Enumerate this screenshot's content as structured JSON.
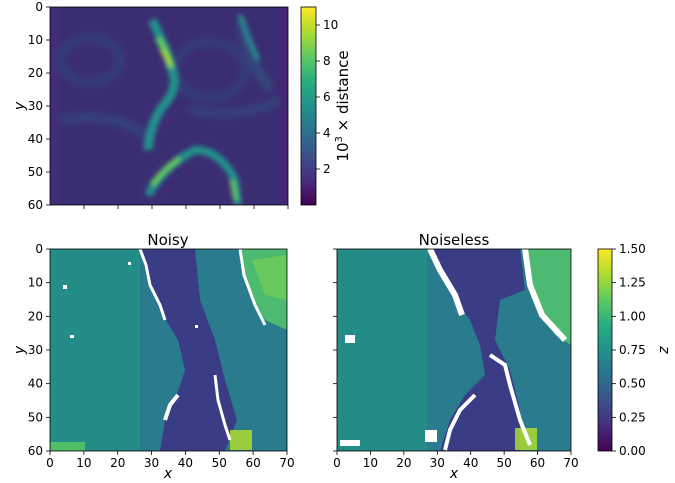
{
  "figure": {
    "panels": [
      {
        "id": "top",
        "title": "",
        "xlabel": "",
        "ylabel": "y",
        "xticks": [],
        "yticks": [
          0,
          10,
          20,
          30,
          40,
          50,
          60
        ],
        "xlim": [
          0,
          70
        ],
        "ylim": [
          60,
          0
        ],
        "colormap": "viridis",
        "field": "distance",
        "value_range": [
          0,
          11
        ],
        "show_xtick_labels": false
      },
      {
        "id": "noisy",
        "title": "Noisy",
        "xlabel": "x",
        "ylabel": "y",
        "xticks": [
          0,
          10,
          20,
          30,
          40,
          50,
          60,
          70
        ],
        "yticks": [
          0,
          10,
          20,
          30,
          40,
          50,
          60
        ],
        "xlim": [
          0,
          70
        ],
        "ylim": [
          60,
          0
        ],
        "colormap": "viridis",
        "field": "z",
        "value_range": [
          0,
          1.5
        ],
        "show_xtick_labels": true
      },
      {
        "id": "noiseless",
        "title": "Noiseless",
        "xlabel": "x",
        "ylabel": "",
        "xticks": [
          0,
          10,
          20,
          30,
          40,
          50,
          60,
          70
        ],
        "yticks": [
          0,
          10,
          20,
          30,
          40,
          50,
          60
        ],
        "xlim": [
          0,
          70
        ],
        "ylim": [
          60,
          0
        ],
        "colormap": "viridis",
        "field": "z",
        "value_range": [
          0,
          1.5
        ],
        "show_xtick_labels": true
      }
    ],
    "colorbars": [
      {
        "id": "top-colorbar",
        "label_base": "10",
        "label_exp": "3",
        "label_rest": " × distance",
        "range": [
          0,
          11
        ],
        "ticks": [
          "2",
          "4",
          "6",
          "8",
          "10"
        ],
        "tick_values": [
          2,
          4,
          6,
          8,
          10
        ]
      },
      {
        "id": "bottom-colorbar",
        "label": "z",
        "range": [
          0,
          1.5
        ],
        "ticks": [
          "0.00",
          "0.25",
          "0.50",
          "0.75",
          "1.00",
          "1.25",
          "1.50"
        ],
        "tick_values": [
          0,
          0.25,
          0.5,
          0.75,
          1.0,
          1.25,
          1.5
        ]
      }
    ]
  },
  "chart_data": [
    {
      "type": "heatmap",
      "title": "",
      "xlabel": "",
      "ylabel": "y",
      "xlim": [
        0,
        70
      ],
      "ylim": [
        60,
        0
      ],
      "colorbar_label": "10^3 × distance",
      "value_range": [
        0,
        11
      ],
      "description_values": {
        "background": 1.5,
        "ridge_peak": 10.5
      }
    },
    {
      "type": "heatmap",
      "title": "Noisy",
      "xlabel": "x",
      "ylabel": "y",
      "xlim": [
        0,
        70
      ],
      "ylim": [
        60,
        0
      ],
      "colorbar_label": "z",
      "value_range": [
        0,
        1.5
      ]
    },
    {
      "type": "heatmap",
      "title": "Noiseless",
      "xlabel": "x",
      "ylabel": "",
      "xlim": [
        0,
        70
      ],
      "ylim": [
        60,
        0
      ],
      "colorbar_label": "z",
      "value_range": [
        0,
        1.5
      ]
    }
  ]
}
